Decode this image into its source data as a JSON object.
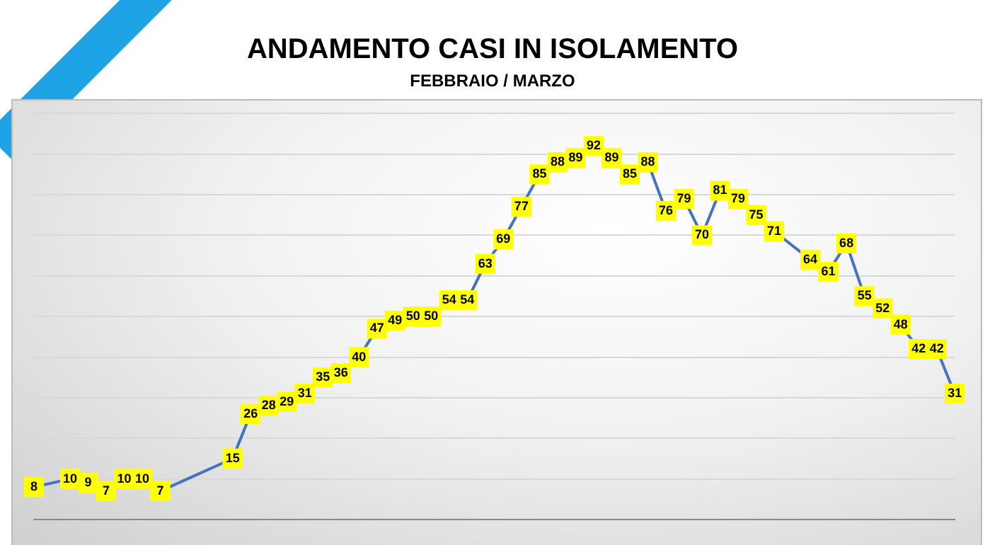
{
  "chart_data": {
    "type": "line",
    "title": "ANDAMENTO CASI IN ISOLAMENTO",
    "subtitle": "FEBBRAIO / MARZO",
    "categories": [
      null,
      null,
      null,
      null,
      null,
      null,
      null,
      null,
      null,
      null,
      null,
      null,
      null,
      null,
      null,
      null,
      null,
      null,
      null,
      null,
      null,
      null,
      null,
      null,
      null,
      null,
      null,
      null,
      null,
      null,
      null,
      null,
      null,
      null,
      null,
      null,
      null,
      null,
      null,
      null,
      null,
      null,
      null,
      null,
      null,
      null,
      null,
      null,
      null,
      null,
      null,
      null
    ],
    "series": [
      {
        "color": "#4472c4",
        "values": [
          8,
          null,
          10,
          9,
          7,
          10,
          10,
          7,
          null,
          null,
          null,
          15,
          26,
          28,
          29,
          31,
          35,
          36,
          40,
          47,
          49,
          50,
          50,
          54,
          54,
          63,
          69,
          77,
          85,
          88,
          89,
          92,
          89,
          85,
          88,
          76,
          79,
          70,
          81,
          79,
          75,
          71,
          null,
          64,
          61,
          68,
          55,
          52,
          48,
          42,
          42,
          31
        ]
      }
    ],
    "ylim": [
      0,
      100
    ],
    "yticks": [
      {
        "value": 0,
        "label": null
      },
      {
        "value": 10,
        "label": null
      },
      {
        "value": 20,
        "label": null
      },
      {
        "value": 30,
        "label": null
      },
      {
        "value": 40,
        "label": null
      },
      {
        "value": 50,
        "label": null
      },
      {
        "value": 60,
        "label": null
      },
      {
        "value": 70,
        "label": null
      },
      {
        "value": 80,
        "label": null
      },
      {
        "value": 90,
        "label": null
      },
      {
        "value": 100,
        "label": null
      }
    ],
    "grid": "y",
    "data_labels": true,
    "marker": "square",
    "line_style": "solid",
    "legend": false
  }
}
